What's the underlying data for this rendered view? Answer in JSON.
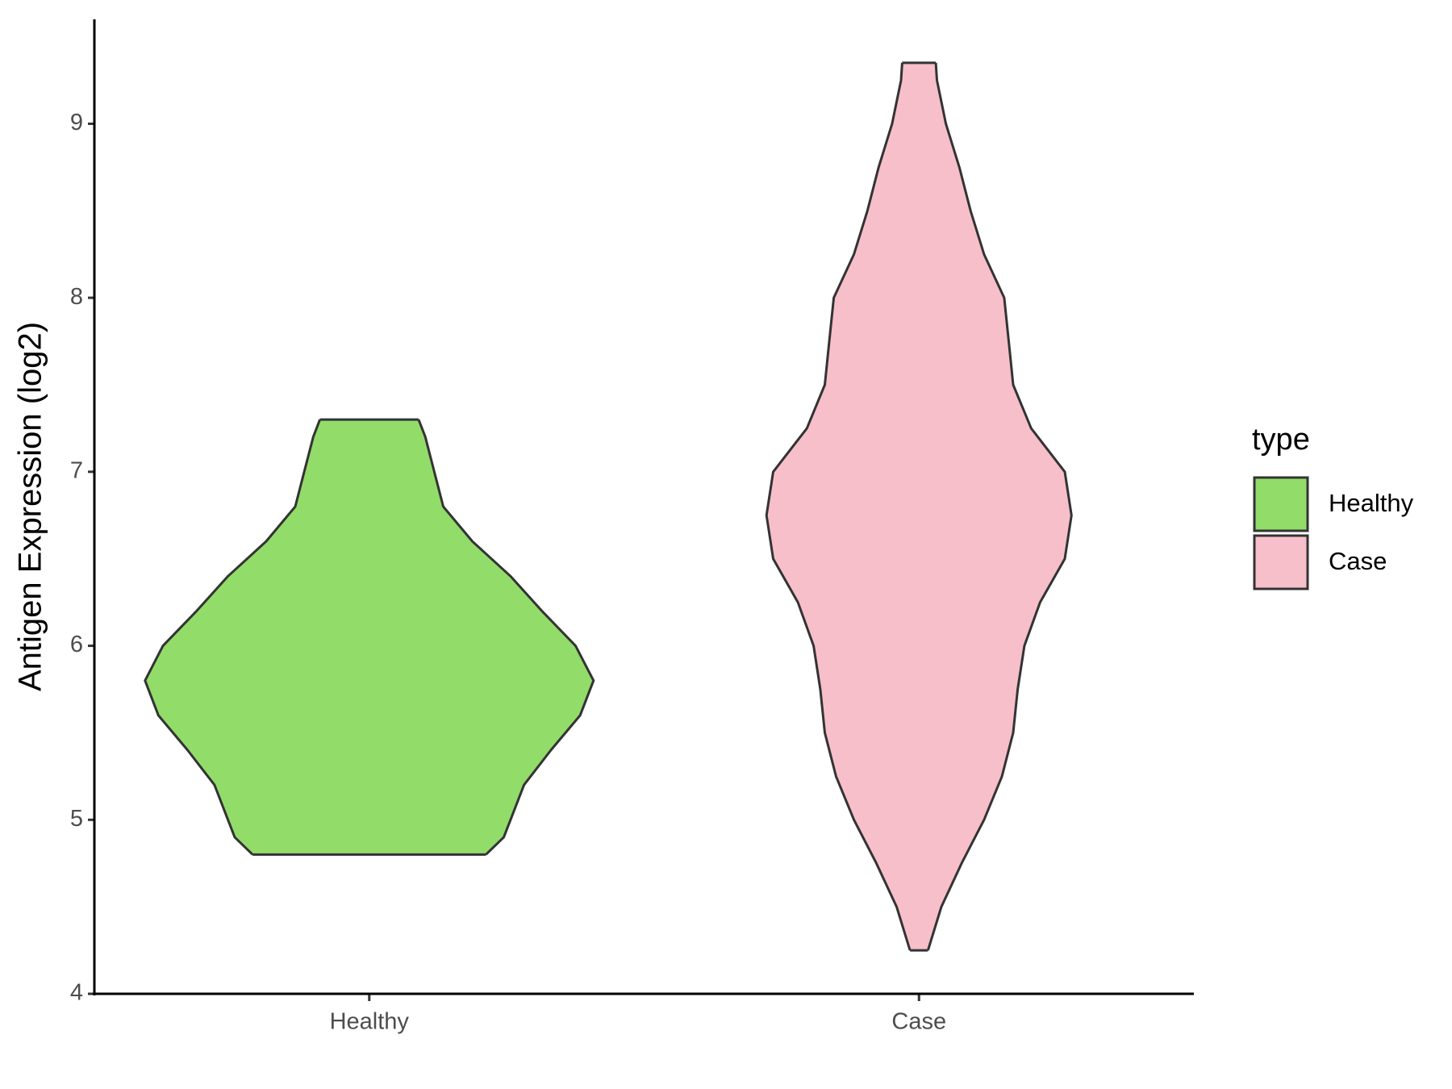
{
  "chart_data": {
    "type": "violin",
    "ylabel": "Antigen Expression (log2)",
    "categories": [
      "Healthy",
      "Case"
    ],
    "ylim": [
      4,
      9.6
    ],
    "yticks": [
      4,
      5,
      6,
      7,
      8,
      9
    ],
    "legend_title": "type",
    "legend": "right",
    "series": [
      {
        "name": "Healthy",
        "color": "#92dc6a",
        "y": [
          4.8,
          4.9,
          5.0,
          5.2,
          5.4,
          5.6,
          5.8,
          6.0,
          6.2,
          6.4,
          6.6,
          6.8,
          7.0,
          7.1,
          7.2,
          7.3
        ],
        "density": [
          0.52,
          0.6,
          0.63,
          0.69,
          0.81,
          0.94,
          1.0,
          0.92,
          0.77,
          0.63,
          0.46,
          0.33,
          0.29,
          0.27,
          0.25,
          0.22
        ]
      },
      {
        "name": "Case",
        "color": "#f7bfca",
        "y": [
          4.25,
          4.5,
          4.75,
          5.0,
          5.25,
          5.5,
          5.75,
          6.0,
          6.25,
          6.5,
          6.75,
          7.0,
          7.25,
          7.5,
          7.75,
          8.0,
          8.25,
          8.5,
          8.75,
          9.0,
          9.25,
          9.35
        ],
        "density": [
          0.04,
          0.1,
          0.19,
          0.29,
          0.37,
          0.42,
          0.44,
          0.47,
          0.54,
          0.65,
          0.68,
          0.65,
          0.5,
          0.42,
          0.4,
          0.38,
          0.29,
          0.23,
          0.18,
          0.12,
          0.08,
          0.075
        ]
      }
    ]
  }
}
